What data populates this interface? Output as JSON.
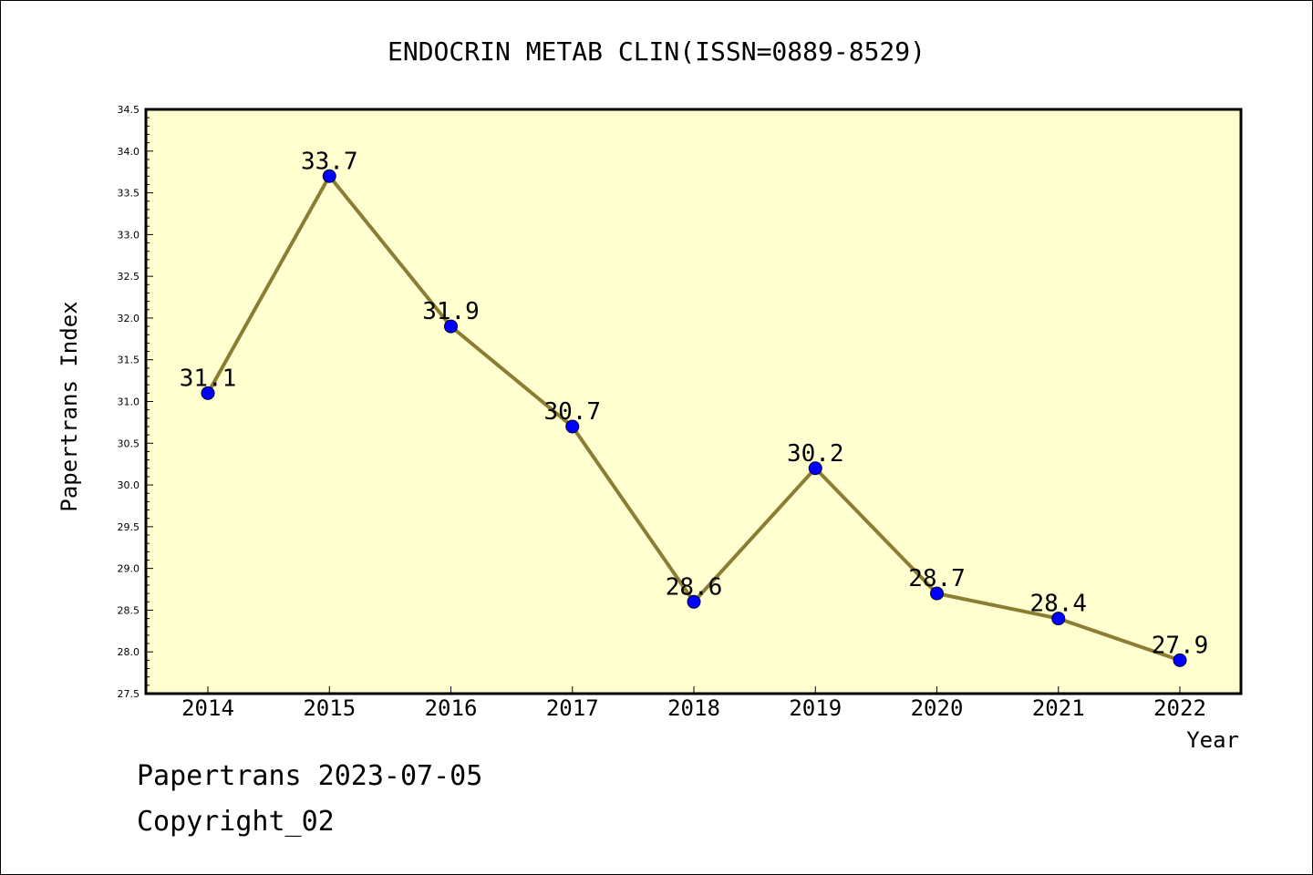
{
  "chart_data": {
    "type": "line",
    "title": "ENDOCRIN METAB CLIN(ISSN=0889-8529)",
    "xlabel": "Year",
    "ylabel": "Papertrans Index",
    "categories": [
      "2014",
      "2015",
      "2016",
      "2017",
      "2018",
      "2019",
      "2020",
      "2021",
      "2022"
    ],
    "values": [
      31.1,
      33.7,
      31.9,
      30.7,
      28.6,
      30.2,
      28.7,
      28.4,
      27.9
    ],
    "data_labels": [
      "31.1",
      "33.7",
      "31.9",
      "30.7",
      "28.6",
      "30.2",
      "28.7",
      "28.4",
      "27.9"
    ],
    "ylim": [
      27.5,
      34.5
    ],
    "y_ticks": [
      "27.5",
      "28.0",
      "28.5",
      "29.0",
      "29.5",
      "30.0",
      "30.5",
      "31.0",
      "31.5",
      "32.0",
      "32.5",
      "33.0",
      "33.5",
      "34.0",
      "34.5"
    ],
    "grid": false,
    "legend": "none",
    "colors": {
      "plot_background": "#ffffd0",
      "line": "#8b7d33",
      "marker": "#0000ff",
      "axis": "#000000"
    }
  },
  "footer": {
    "line1": "Papertrans 2023-07-05",
    "line2": "Copyright_02"
  }
}
